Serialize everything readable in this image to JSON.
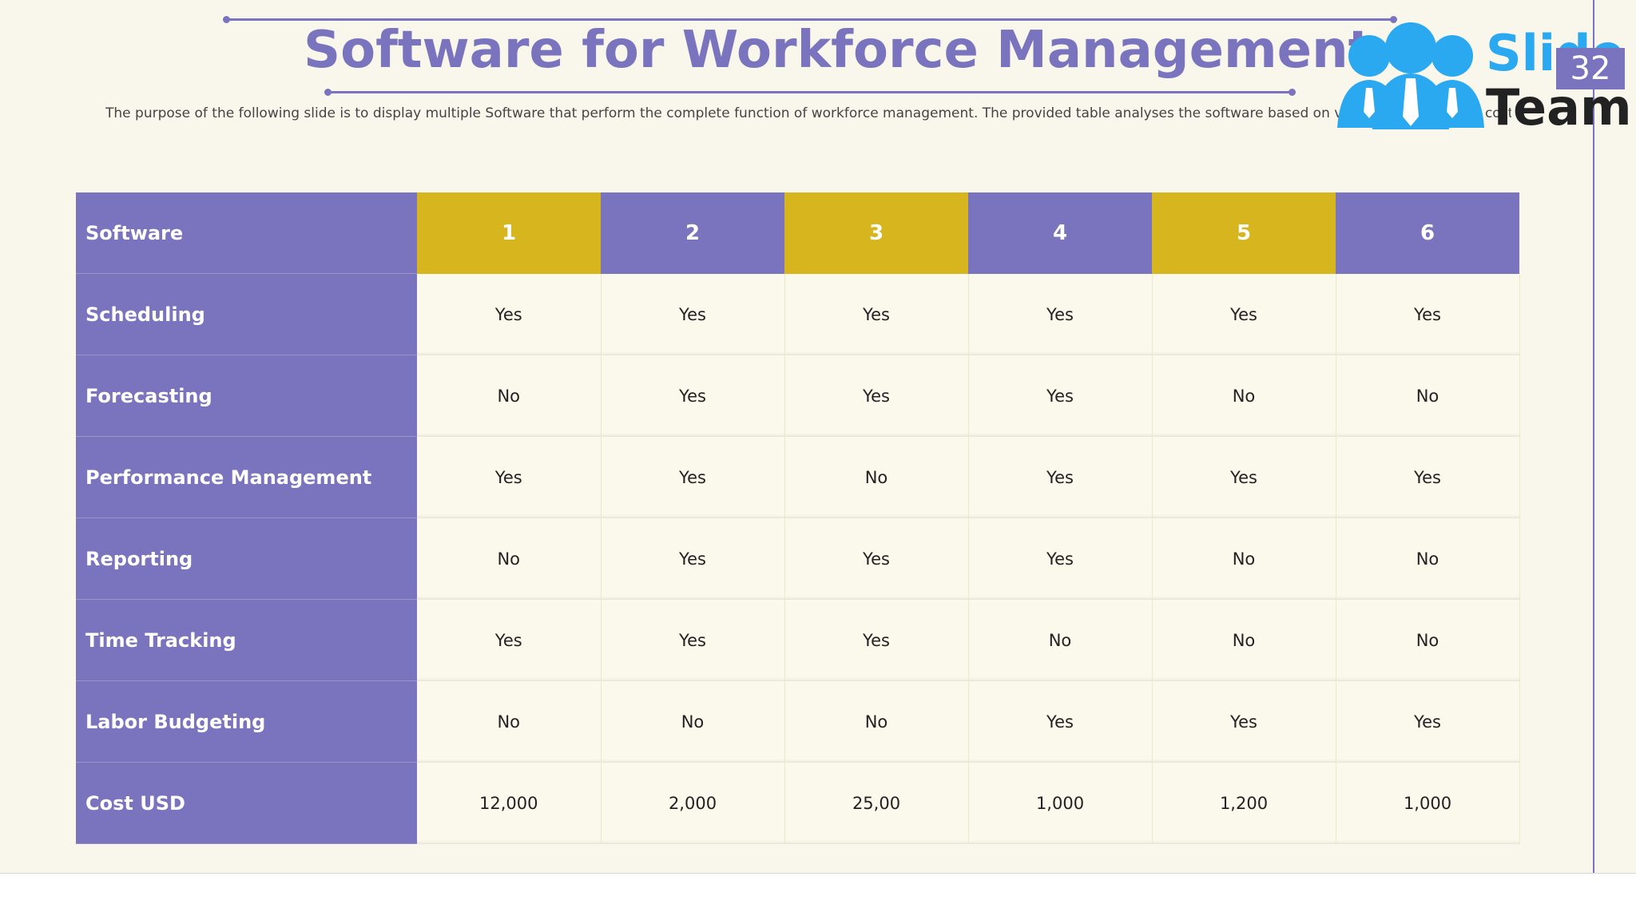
{
  "title": "Software for Workforce Management",
  "subtitle": "The purpose of the following slide is to display multiple Software that perform the complete function of workforce management. The provided table analyses the software based on various functions and cost.",
  "logo": {
    "line1": "Slide",
    "line2": "Team"
  },
  "page_number": "32",
  "colors": {
    "purple": "#7a73bd",
    "gold": "#d6b51e",
    "background": "#f9f6ec"
  },
  "table": {
    "header_label": "Software",
    "columns": [
      "1",
      "2",
      "3",
      "4",
      "5",
      "6"
    ],
    "rows": [
      {
        "label": "Scheduling",
        "values": [
          "Yes",
          "Yes",
          "Yes",
          "Yes",
          "Yes",
          "Yes"
        ]
      },
      {
        "label": "Forecasting",
        "values": [
          "No",
          "Yes",
          "Yes",
          "Yes",
          "No",
          "No"
        ]
      },
      {
        "label": "Performance Management",
        "values": [
          "Yes",
          "Yes",
          "No",
          "Yes",
          "Yes",
          "Yes"
        ]
      },
      {
        "label": "Reporting",
        "values": [
          "No",
          "Yes",
          "Yes",
          "Yes",
          "No",
          "No"
        ]
      },
      {
        "label": "Time Tracking",
        "values": [
          "Yes",
          "Yes",
          "Yes",
          "No",
          "No",
          "No"
        ]
      },
      {
        "label": "Labor Budgeting",
        "values": [
          "No",
          "No",
          "No",
          "Yes",
          "Yes",
          "Yes"
        ]
      },
      {
        "label": "Cost USD",
        "values": [
          "12,000",
          "2,000",
          "25,00",
          "1,000",
          "1,200",
          "1,000"
        ]
      }
    ]
  }
}
